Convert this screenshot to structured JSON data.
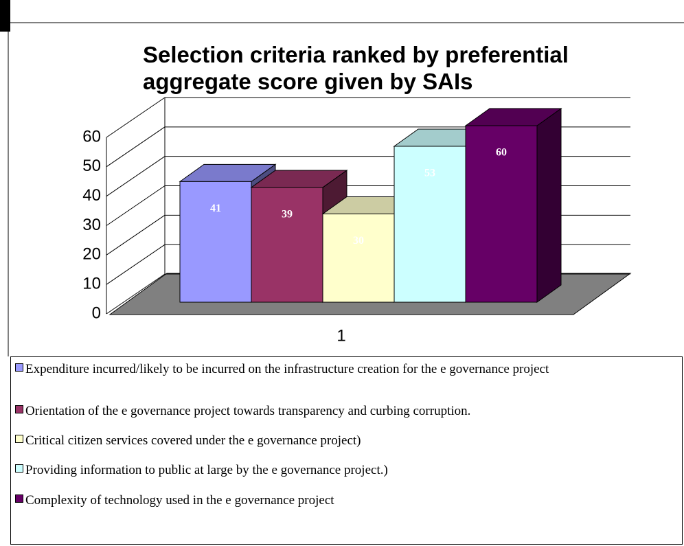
{
  "chart_data": {
    "type": "bar3d",
    "title": "Selection criteria ranked by preferential aggregate score given by SAIs",
    "categories": [
      "1"
    ],
    "ylim": [
      0,
      60
    ],
    "yticks": [
      0,
      10,
      20,
      30,
      40,
      50,
      60
    ],
    "grid": true,
    "series": [
      {
        "name": "Expenditure incurred/likely to be incurred on the infrastructure creation for the e governance project",
        "color": "#9999ff",
        "values": [
          41
        ]
      },
      {
        "name": "Orientation of the e governance project towards transparency and curbing corruption.",
        "color": "#993366",
        "values": [
          39
        ]
      },
      {
        "name": "Critical citizen services covered under the e governance project)",
        "color": "#ffffcc",
        "values": [
          30
        ]
      },
      {
        "name": "Providing information to public at large by the e governance project.)",
        "color": "#ccffff",
        "values": [
          53
        ]
      },
      {
        "name": "Complexity of technology used in the e governance project",
        "color": "#660066",
        "values": [
          60
        ]
      }
    ]
  }
}
